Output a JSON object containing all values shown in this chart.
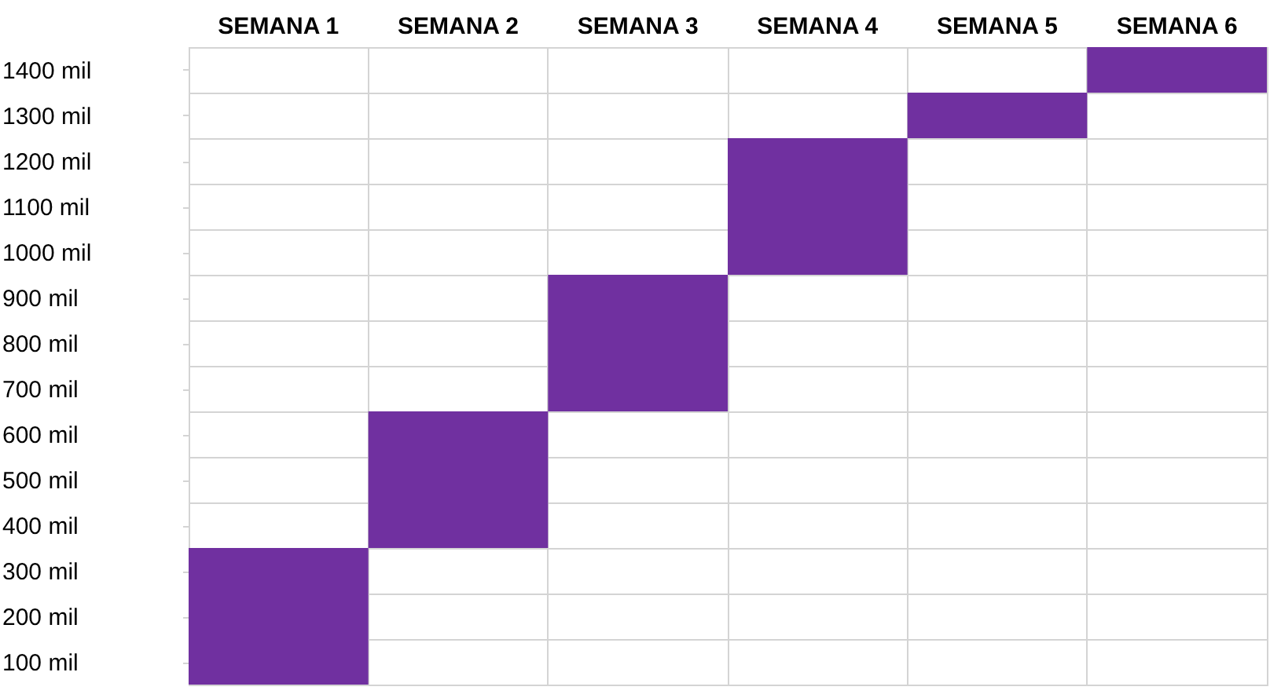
{
  "chart_data": {
    "type": "bar",
    "color": "#7030a0",
    "grid": true,
    "categories": [
      "SEMANA 1",
      "SEMANA 2",
      "SEMANA 3",
      "SEMANA 4",
      "SEMANA 5",
      "SEMANA 6"
    ],
    "base": [
      50,
      350,
      650,
      950,
      1250,
      1350
    ],
    "values": [
      300,
      300,
      300,
      300,
      100,
      100
    ],
    "ylim": [
      50,
      1450
    ],
    "yticks": [
      {
        "value": 100,
        "label": "100 mil"
      },
      {
        "value": 200,
        "label": "200 mil"
      },
      {
        "value": 300,
        "label": "300 mil"
      },
      {
        "value": 400,
        "label": "400 mil"
      },
      {
        "value": 500,
        "label": "500 mil"
      },
      {
        "value": 600,
        "label": "600 mil"
      },
      {
        "value": 700,
        "label": "700 mil"
      },
      {
        "value": 800,
        "label": "800 mil"
      },
      {
        "value": 900,
        "label": "900 mil"
      },
      {
        "value": 1000,
        "label": "1000 mil"
      },
      {
        "value": 1100,
        "label": "1100 mil"
      },
      {
        "value": 1200,
        "label": "1200 mil"
      },
      {
        "value": 1300,
        "label": "1300 mil"
      },
      {
        "value": 1400,
        "label": "1400 mil"
      }
    ]
  }
}
